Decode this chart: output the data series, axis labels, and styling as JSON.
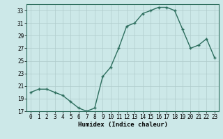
{
  "x": [
    0,
    1,
    2,
    3,
    4,
    5,
    6,
    7,
    8,
    9,
    10,
    11,
    12,
    13,
    14,
    15,
    16,
    17,
    18,
    19,
    20,
    21,
    22,
    23
  ],
  "y": [
    20,
    20.5,
    20.5,
    20,
    19.5,
    18.5,
    17.5,
    17,
    17.5,
    22.5,
    24,
    27,
    30.5,
    31,
    32.5,
    33,
    33.5,
    33.5,
    33,
    30,
    27,
    27.5,
    28.5,
    25.5
  ],
  "line_color": "#2d6e5e",
  "marker_color": "#2d6e5e",
  "bg_color": "#cce8e8",
  "grid_color": "#b0cccc",
  "xlabel": "Humidex (Indice chaleur)",
  "ylim": [
    17,
    34
  ],
  "xlim_min": -0.5,
  "xlim_max": 23.5,
  "yticks": [
    17,
    19,
    21,
    23,
    25,
    27,
    29,
    31,
    33
  ],
  "xticks": [
    0,
    1,
    2,
    3,
    4,
    5,
    6,
    7,
    8,
    9,
    10,
    11,
    12,
    13,
    14,
    15,
    16,
    17,
    18,
    19,
    20,
    21,
    22,
    23
  ],
  "tick_fontsize": 5.5,
  "xlabel_fontsize": 6.5,
  "line_width": 1.0,
  "marker_size": 2.5
}
